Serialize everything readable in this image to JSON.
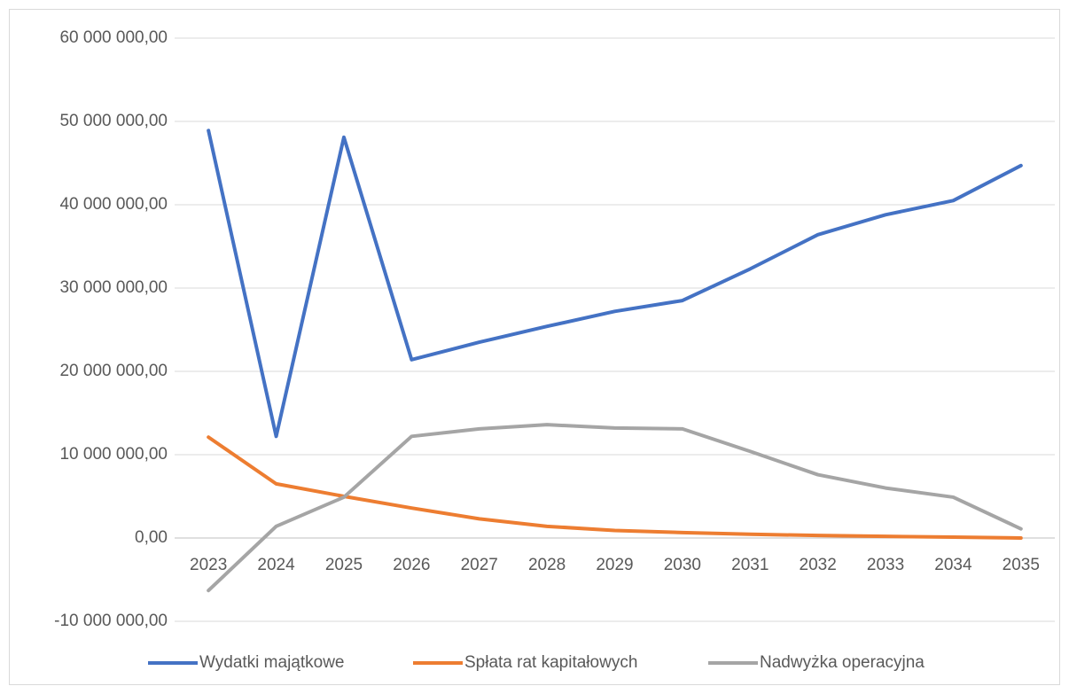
{
  "chart_data": {
    "type": "line",
    "categories": [
      "2023",
      "2024",
      "2025",
      "2026",
      "2027",
      "2028",
      "2029",
      "2030",
      "2031",
      "2032",
      "2033",
      "2034",
      "2035"
    ],
    "series": [
      {
        "name": "Wydatki majątkowe",
        "color": "#4472c4",
        "values": [
          48900000,
          12200000,
          48100000,
          21400000,
          23500000,
          25400000,
          27200000,
          28500000,
          32300000,
          36400000,
          38800000,
          40500000,
          44700000
        ]
      },
      {
        "name": "Spłata rat kapitałowych",
        "color": "#ed7d31",
        "values": [
          12100000,
          6500000,
          5000000,
          3600000,
          2300000,
          1400000,
          900000,
          650000,
          450000,
          300000,
          200000,
          100000,
          0
        ]
      },
      {
        "name": "Nadwyżka operacyjna",
        "color": "#a5a5a5",
        "values": [
          -6300000,
          1400000,
          4900000,
          12200000,
          13100000,
          13600000,
          13200000,
          13100000,
          10400000,
          7600000,
          6000000,
          4900000,
          1100000
        ]
      }
    ],
    "ylim": [
      -10000000,
      60000000
    ],
    "yticks": [
      {
        "value": -10000000,
        "label": "-10 000 000,00"
      },
      {
        "value": 0,
        "label": "0,00"
      },
      {
        "value": 10000000,
        "label": "10 000 000,00"
      },
      {
        "value": 20000000,
        "label": "20 000 000,00"
      },
      {
        "value": 30000000,
        "label": "30 000 000,00"
      },
      {
        "value": 40000000,
        "label": "40 000 000,00"
      },
      {
        "value": 50000000,
        "label": "50 000 000,00"
      },
      {
        "value": 60000000,
        "label": "60 000 000,00"
      }
    ],
    "grid": true,
    "legend": "bottom"
  }
}
